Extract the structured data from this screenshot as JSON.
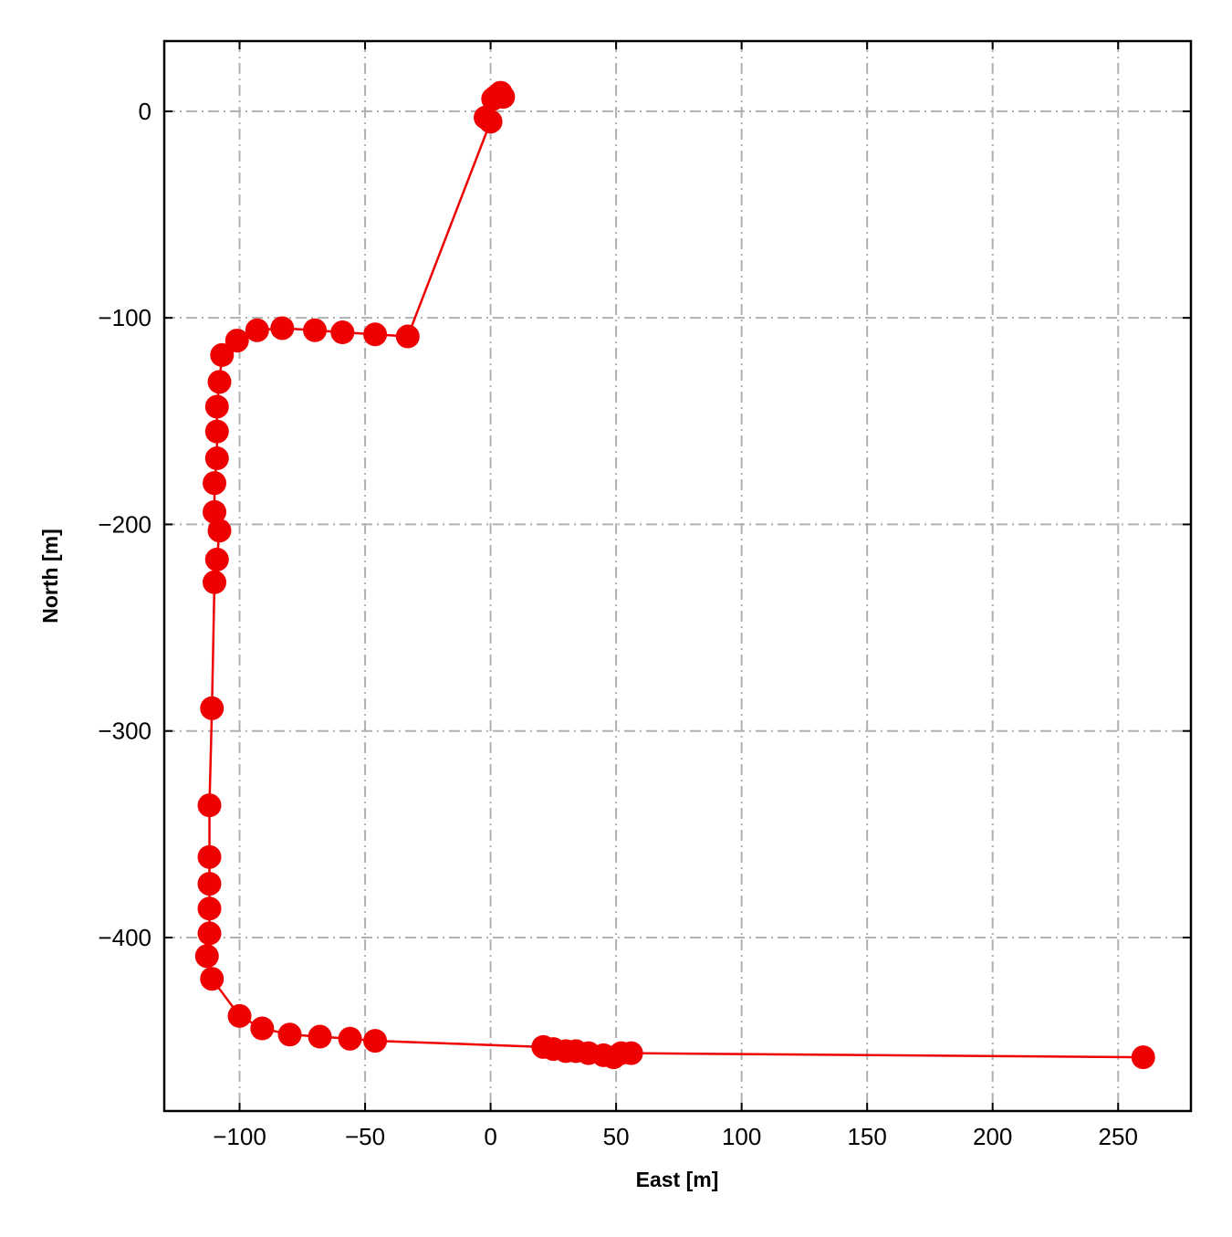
{
  "chart_data": {
    "type": "line",
    "xlabel": "East [m]",
    "ylabel": "North [m]",
    "color": "#ee0000",
    "marker": true,
    "grid": true,
    "x": [
      4,
      5,
      2,
      1,
      -2,
      0,
      -33,
      -46,
      -59,
      -70,
      -83,
      -93,
      -101,
      -107,
      -108,
      -109,
      -109,
      -109,
      -110,
      -110,
      -108,
      -109,
      -110,
      -111,
      -112,
      -112,
      -112,
      -112,
      -112,
      -113,
      -111,
      -100,
      -91,
      -80,
      -68,
      -56,
      -46,
      21,
      25,
      30,
      34,
      39,
      45,
      49,
      52,
      56,
      260
    ],
    "values": [
      9,
      7,
      7,
      6,
      -3,
      -5,
      -109,
      -108,
      -107,
      -106,
      -105,
      -106,
      -111,
      -118,
      -131,
      -143,
      -155,
      -168,
      -180,
      -194,
      -203,
      -217,
      -228,
      -289,
      -336,
      -361,
      -374,
      -386,
      -398,
      -409,
      -420,
      -438,
      -444,
      -447,
      -448,
      -449,
      -450,
      -453,
      -454,
      -455,
      -455,
      -456,
      -457,
      -458,
      -456,
      -456,
      -458
    ],
    "xlim": [
      -130,
      279
    ],
    "ylim": [
      -484,
      34
    ],
    "xticks": [
      {
        "value": -100,
        "label": "−100"
      },
      {
        "value": -50,
        "label": "−50"
      },
      0,
      50,
      100,
      150,
      200,
      250
    ],
    "yticks": [
      0,
      {
        "value": -100,
        "label": "−100"
      },
      {
        "value": -200,
        "label": "−200"
      },
      {
        "value": -300,
        "label": "−300"
      },
      {
        "value": -400,
        "label": "−400"
      }
    ]
  }
}
